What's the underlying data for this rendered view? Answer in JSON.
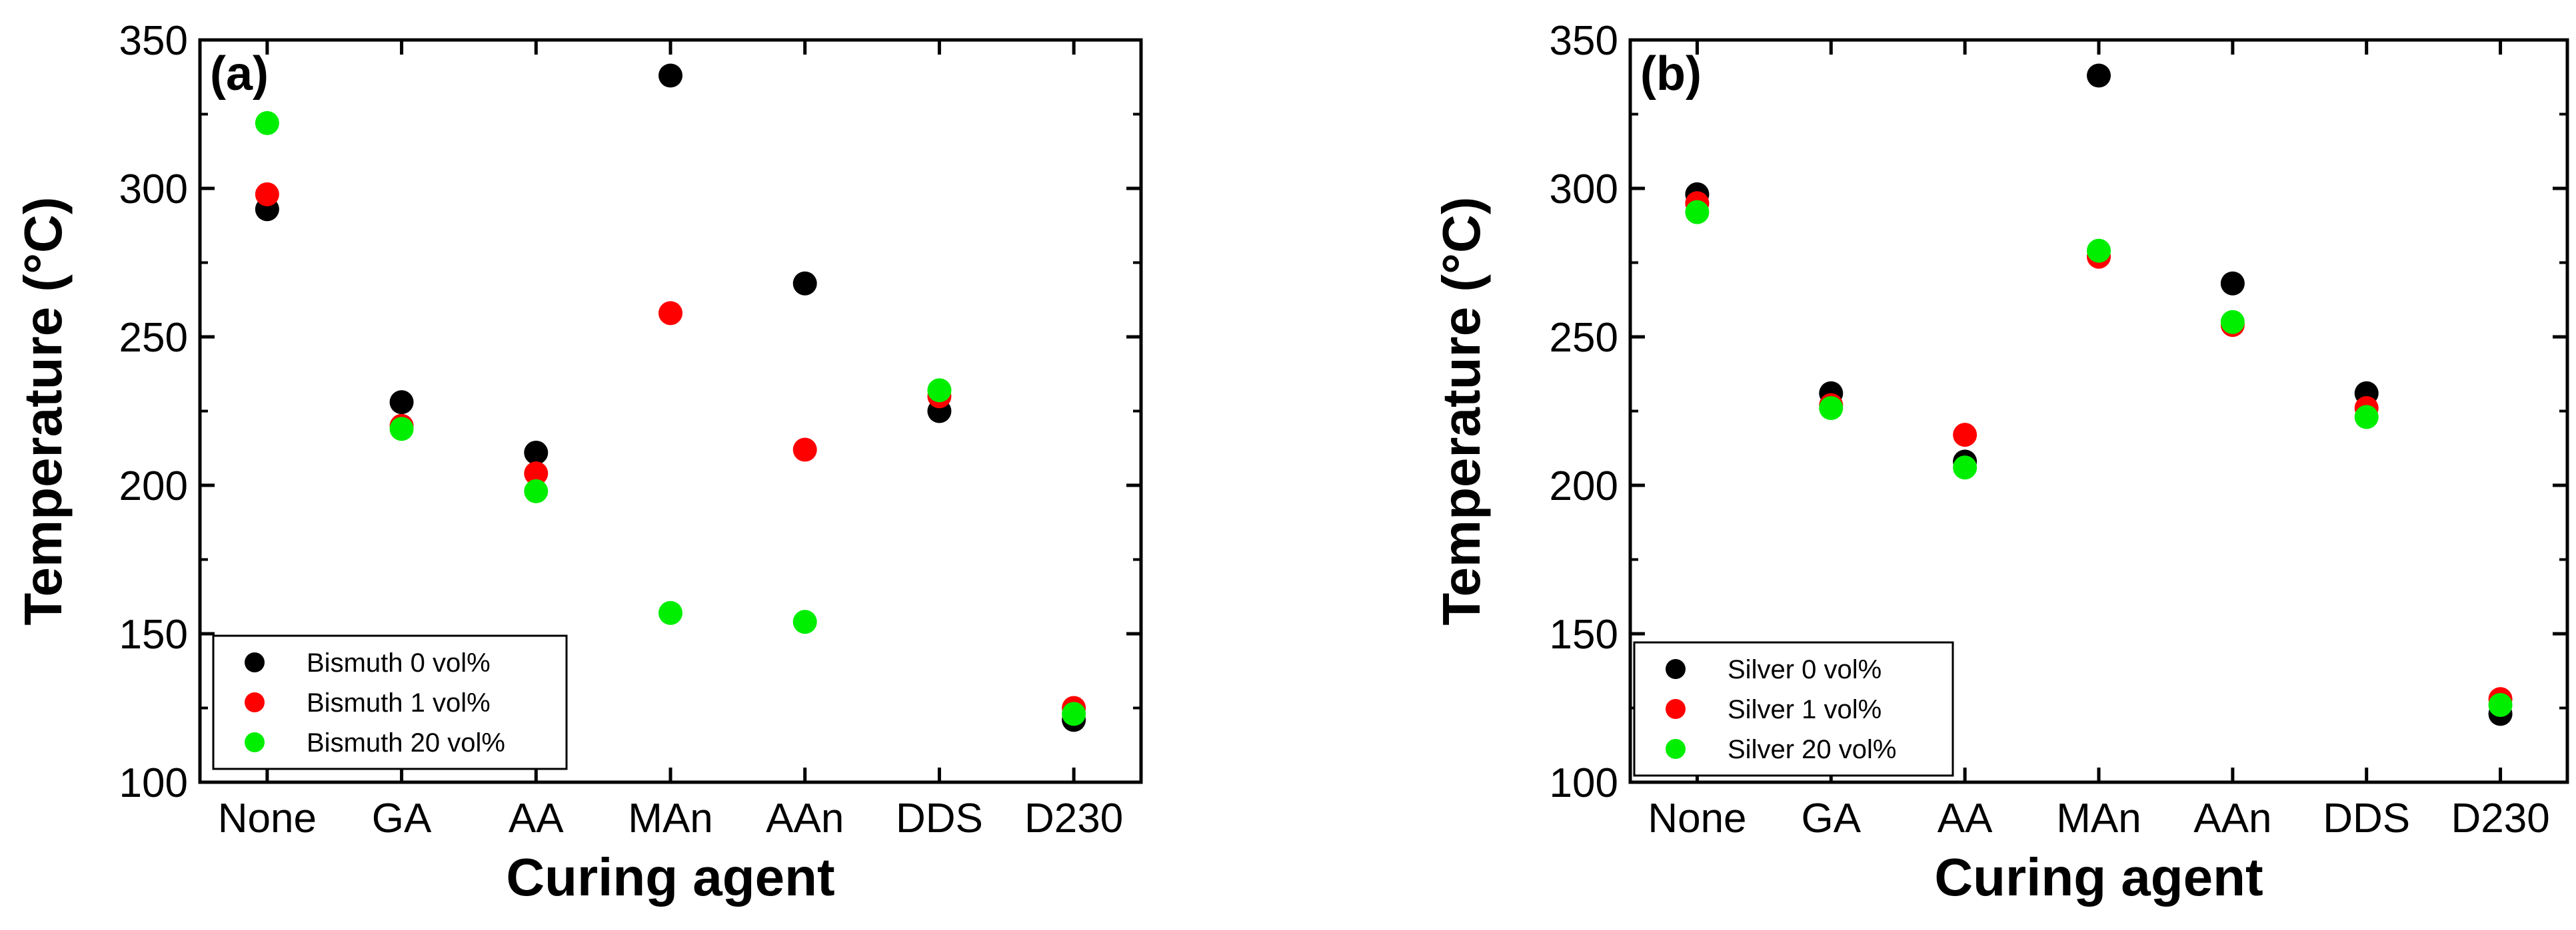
{
  "chart_data": [
    {
      "type": "scatter",
      "panel_label": "(a)",
      "categories": [
        "None",
        "GA",
        "AA",
        "MAn",
        "AAn",
        "DDS",
        "D230"
      ],
      "series": [
        {
          "name": "Bismuth 0 vol%",
          "color": "#000000",
          "values": [
            293,
            228,
            211,
            338,
            268,
            225,
            121
          ]
        },
        {
          "name": "Bismuth 1 vol%",
          "color": "#ff0000",
          "values": [
            298,
            220,
            204,
            258,
            212,
            230,
            125
          ]
        },
        {
          "name": "Bismuth 20 vol%",
          "color": "#00ee00",
          "values": [
            322,
            219,
            198,
            157,
            154,
            232,
            123
          ]
        }
      ],
      "xlabel": "Curing agent",
      "ylabel": "Temperature (°C)",
      "ylim": [
        100,
        350
      ],
      "yticks": [
        100,
        150,
        200,
        250,
        300,
        350
      ],
      "legend_position": "bottom-left",
      "grid": false
    },
    {
      "type": "scatter",
      "panel_label": "(b)",
      "categories": [
        "None",
        "GA",
        "AA",
        "MAn",
        "AAn",
        "DDS",
        "D230"
      ],
      "series": [
        {
          "name": "Silver 0 vol%",
          "color": "#000000",
          "values": [
            298,
            231,
            208,
            338,
            268,
            231,
            123
          ]
        },
        {
          "name": "Silver 1 vol%",
          "color": "#ff0000",
          "values": [
            295,
            227,
            217,
            277,
            254,
            226,
            128
          ]
        },
        {
          "name": "Silver 20 vol%",
          "color": "#00ee00",
          "values": [
            292,
            226,
            206,
            279,
            255,
            223,
            126
          ]
        }
      ],
      "xlabel": "Curing agent",
      "ylabel": "Temperature (°C)",
      "ylim": [
        100,
        350
      ],
      "yticks": [
        100,
        150,
        200,
        250,
        300,
        350
      ],
      "legend_position": "bottom-left",
      "grid": false
    }
  ]
}
